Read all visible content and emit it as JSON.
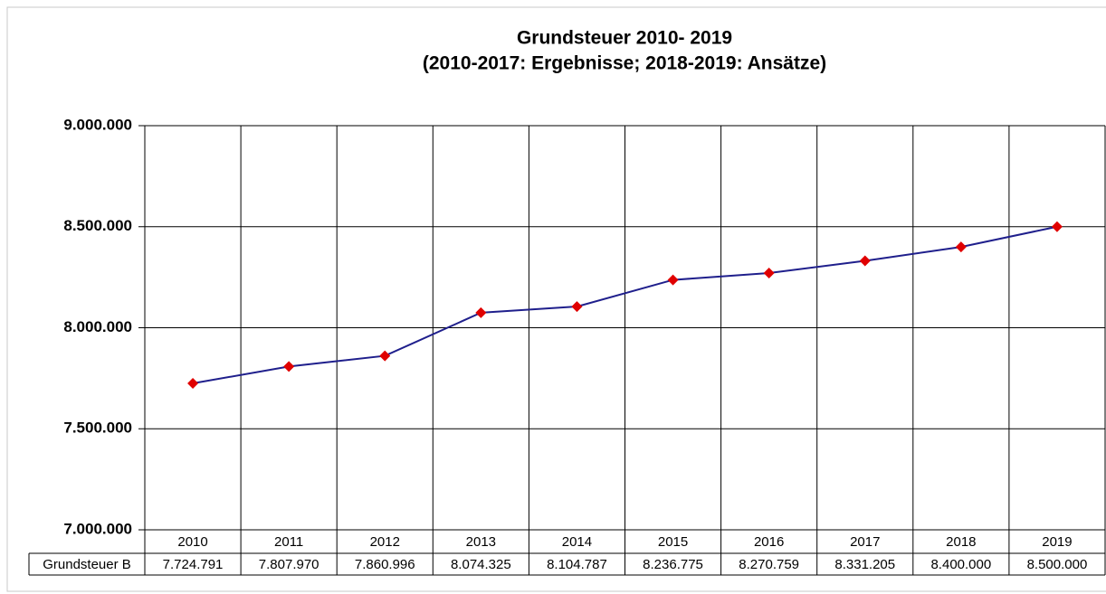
{
  "chart_data": {
    "type": "line",
    "title": "Grundsteuer 2010- 2019",
    "subtitle": "(2010-2017: Ergebnisse; 2018-2019: Ansätze)",
    "categories": [
      "2010",
      "2011",
      "2012",
      "2013",
      "2014",
      "2015",
      "2016",
      "2017",
      "2018",
      "2019"
    ],
    "series": [
      {
        "name": "Grundsteuer B",
        "color": "#1f1f8c",
        "marker_color": "#e00000",
        "values": [
          7724791,
          7807970,
          7860996,
          8074325,
          8104787,
          8236775,
          8270759,
          8331205,
          8400000,
          8500000
        ],
        "value_labels": [
          "7.724.791",
          "7.807.970",
          "7.860.996",
          "8.074.325",
          "8.104.787",
          "8.236.775",
          "8.270.759",
          "8.331.205",
          "8.400.000",
          "8.500.000"
        ]
      }
    ],
    "ylim": [
      7000000,
      9000000
    ],
    "yticks": [
      {
        "value": 7000000,
        "label": "7.000.000"
      },
      {
        "value": 7500000,
        "label": "7.500.000"
      },
      {
        "value": 8000000,
        "label": "8.000.000"
      },
      {
        "value": 8500000,
        "label": "8.500.000"
      },
      {
        "value": 9000000,
        "label": "9.000.000"
      }
    ],
    "grid": true
  }
}
